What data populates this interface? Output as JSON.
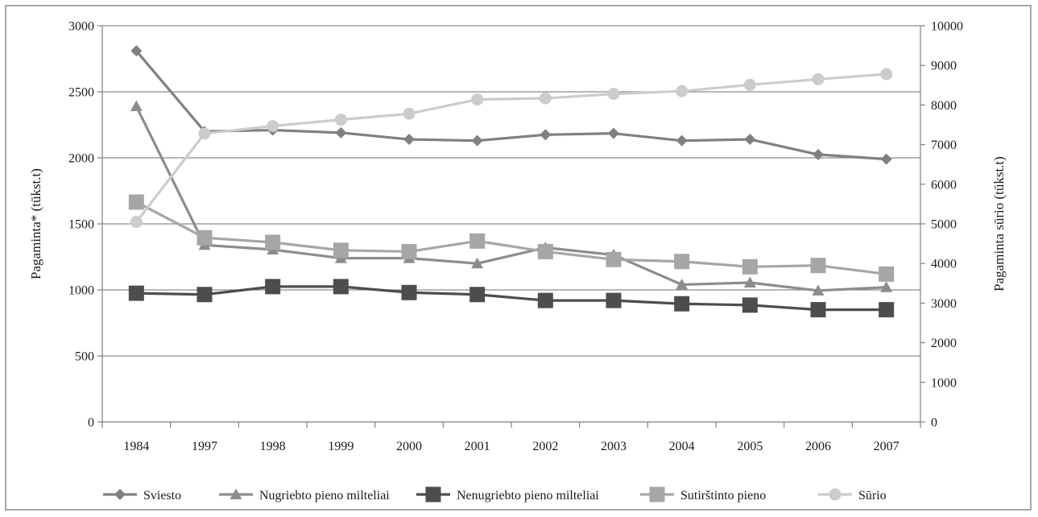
{
  "chart_data": {
    "type": "line",
    "categories": [
      "1984",
      "1997",
      "1998",
      "1999",
      "2000",
      "2001",
      "2002",
      "2003",
      "2004",
      "2005",
      "2006",
      "2007"
    ],
    "ylabel": "Pagaminta* (tūkst.t)",
    "y2label": "Pagaminta sūrio (tūkst.t)",
    "ylim": [
      0,
      3000
    ],
    "y2lim": [
      0,
      10000
    ],
    "yticks": [
      "0",
      "500",
      "1000",
      "1500",
      "2000",
      "2500",
      "3000"
    ],
    "y2ticks": [
      "0",
      "1000",
      "2000",
      "3000",
      "4000",
      "5000",
      "6000",
      "7000",
      "8000",
      "9000",
      "10000"
    ],
    "grid": "horizontal",
    "legend_position": "bottom",
    "series": [
      {
        "name": "Sviesto",
        "axis": "left",
        "marker": "diamond",
        "color": "#808080",
        "values": [
          2810,
          2200,
          2210,
          2190,
          2140,
          2130,
          2175,
          2185,
          2130,
          2140,
          2025,
          1990
        ]
      },
      {
        "name": "Nugriebto pieno milteliai",
        "axis": "left",
        "marker": "triangle",
        "color": "#8c8c8c",
        "values": [
          2390,
          1340,
          1305,
          1240,
          1240,
          1200,
          1320,
          1265,
          1040,
          1055,
          995,
          1020
        ]
      },
      {
        "name": "Nenugriebto pieno milteliai",
        "axis": "left",
        "marker": "square",
        "color": "#4d4d4d",
        "values": [
          975,
          965,
          1025,
          1025,
          980,
          965,
          920,
          920,
          895,
          885,
          850,
          850
        ]
      },
      {
        "name": "Sutirštinto pieno",
        "axis": "left",
        "marker": "square",
        "color": "#a6a6a6",
        "values": [
          1665,
          1395,
          1360,
          1300,
          1290,
          1370,
          1290,
          1230,
          1215,
          1175,
          1185,
          1120
        ]
      },
      {
        "name": "Sūrio",
        "axis": "right",
        "marker": "circle",
        "color": "#cccccc",
        "values": [
          5050,
          7280,
          7470,
          7630,
          7780,
          8140,
          8170,
          8280,
          8350,
          8510,
          8650,
          8780
        ]
      }
    ]
  }
}
